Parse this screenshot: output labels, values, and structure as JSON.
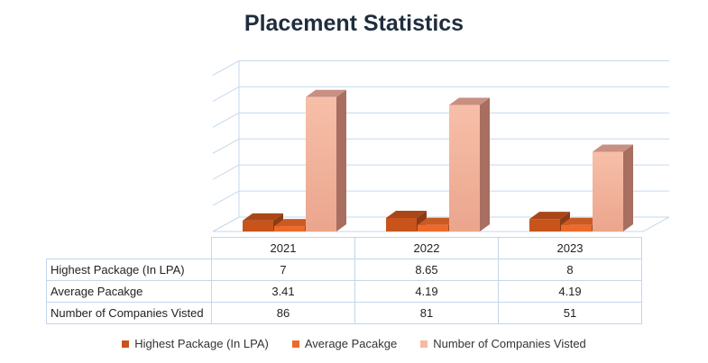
{
  "chart_data": {
    "type": "bar",
    "title": "Placement Statistics",
    "categories": [
      "2021",
      "2022",
      "2023"
    ],
    "series": [
      {
        "name": "Highest Package (In LPA)",
        "values": [
          7,
          8.65,
          8
        ],
        "color": "#c8541c"
      },
      {
        "name": "Average Pacakge",
        "values": [
          3.41,
          4.19,
          4.19
        ],
        "color": "#ee6a2a"
      },
      {
        "name": "Number of Companies Visted",
        "values": [
          86,
          81,
          51
        ],
        "color": "#f7b8a0"
      }
    ],
    "ylim": [
      0,
      100
    ],
    "grid": true,
    "legend_position": "bottom",
    "data_table_values": [
      [
        "7",
        "8.65",
        "8"
      ],
      [
        "3.41",
        "4.19",
        "4.19"
      ],
      [
        "86",
        "81",
        "51"
      ]
    ]
  }
}
